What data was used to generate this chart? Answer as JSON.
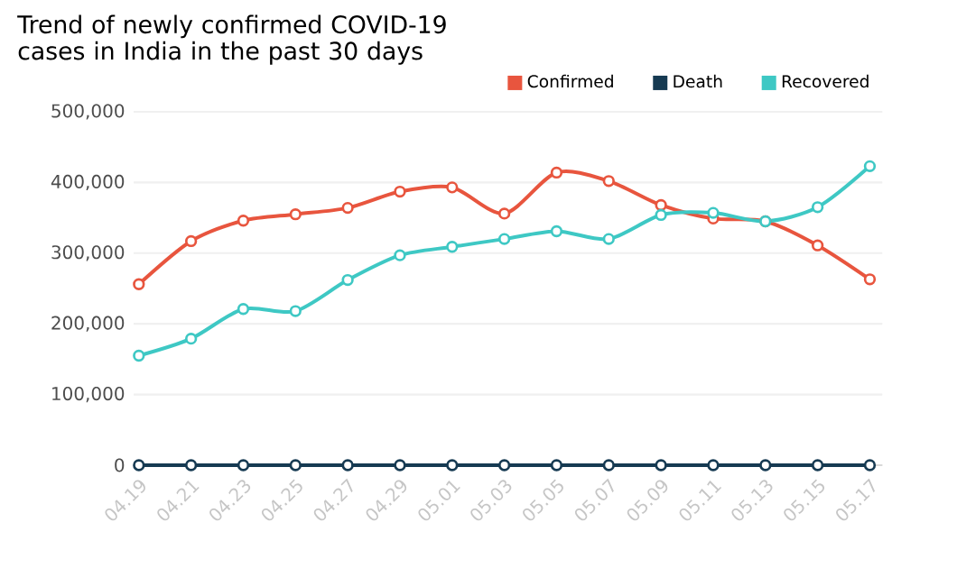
{
  "chart_data": {
    "type": "line",
    "title": "Trend of newly confirmed COVID-19 cases in India in the past 30 days",
    "categories": [
      "04.19",
      "04.21",
      "04.23",
      "04.25",
      "04.27",
      "04.29",
      "05.01",
      "05.03",
      "05.05",
      "05.07",
      "05.09",
      "05.11",
      "05.13",
      "05.15",
      "05.17"
    ],
    "series": [
      {
        "name": "Confirmed",
        "color": "#e8553e",
        "values": [
          256000,
          317000,
          346000,
          355000,
          364000,
          387000,
          393000,
          356000,
          414000,
          402000,
          368000,
          349000,
          345000,
          311000,
          263000
        ]
      },
      {
        "name": "Death",
        "color": "#163a52",
        "values": [
          0,
          0,
          0,
          0,
          0,
          0,
          0,
          0,
          0,
          0,
          0,
          0,
          0,
          0,
          0
        ]
      },
      {
        "name": "Recovered",
        "color": "#3ec8c4",
        "values": [
          155000,
          179000,
          221000,
          218000,
          262000,
          297000,
          309000,
          320000,
          331000,
          320000,
          354000,
          357000,
          345000,
          365000,
          423000
        ]
      }
    ],
    "ylim": [
      0,
      500000
    ],
    "yticks": [
      0,
      {
        "value": 100000,
        "label": "100,000"
      },
      {
        "value": 200000,
        "label": "200,000"
      },
      {
        "value": 300000,
        "label": "300,000"
      },
      {
        "value": 400000,
        "label": "400,000"
      },
      {
        "value": 500000,
        "label": "500,000"
      }
    ],
    "grid": "y",
    "legend": "top right",
    "marker": "circle",
    "line_style": "solid"
  }
}
